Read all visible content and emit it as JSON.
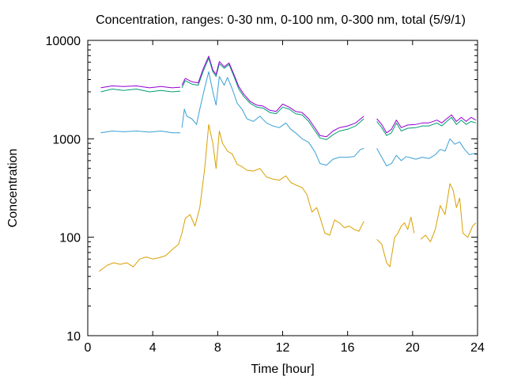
{
  "chart_data": {
    "type": "line",
    "title": "Concentration, ranges: 0-30 nm, 0-100 nm, 0-300 nm, total (5/9/1)",
    "xlabel": "Time [hour]",
    "ylabel": "Concentration",
    "xlim": [
      0,
      24
    ],
    "ylim": [
      10,
      10000
    ],
    "yscale": "log",
    "grid": false,
    "legend": "none",
    "x_ticks": [
      {
        "value": 0,
        "label": "0"
      },
      {
        "value": 4,
        "label": "4"
      },
      {
        "value": 8,
        "label": "8"
      },
      {
        "value": 12,
        "label": "12"
      },
      {
        "value": 16,
        "label": "16"
      },
      {
        "value": 20,
        "label": "20"
      },
      {
        "value": 24,
        "label": "24"
      }
    ],
    "y_ticks": [
      {
        "value": 10,
        "label": "10"
      },
      {
        "value": 100,
        "label": "100"
      },
      {
        "value": 1000,
        "label": "1000"
      },
      {
        "value": 10000,
        "label": "10000"
      }
    ],
    "series": [
      {
        "color": "#d9a000",
        "segments": [
          [
            [
              0.7,
              45
            ],
            [
              1.2,
              52
            ],
            [
              1.6,
              55
            ],
            [
              2.0,
              53
            ],
            [
              2.4,
              55
            ],
            [
              2.8,
              50
            ],
            [
              3.2,
              60
            ],
            [
              3.6,
              63
            ],
            [
              4.0,
              60
            ],
            [
              4.4,
              62
            ],
            [
              4.8,
              65
            ],
            [
              5.2,
              75
            ],
            [
              5.6,
              85
            ],
            [
              5.8,
              110
            ],
            [
              6.0,
              155
            ],
            [
              6.3,
              170
            ],
            [
              6.6,
              130
            ],
            [
              6.9,
              200
            ],
            [
              7.2,
              500
            ],
            [
              7.45,
              1400
            ],
            [
              7.7,
              900
            ],
            [
              7.9,
              500
            ],
            [
              8.1,
              1200
            ],
            [
              8.3,
              900
            ],
            [
              8.6,
              750
            ],
            [
              8.9,
              700
            ],
            [
              9.2,
              550
            ],
            [
              9.5,
              520
            ],
            [
              9.8,
              480
            ],
            [
              10.2,
              470
            ],
            [
              10.6,
              500
            ],
            [
              11.0,
              410
            ],
            [
              11.4,
              390
            ],
            [
              11.8,
              380
            ],
            [
              12.2,
              420
            ],
            [
              12.5,
              360
            ],
            [
              12.8,
              340
            ],
            [
              13.2,
              320
            ],
            [
              13.5,
              270
            ],
            [
              13.8,
              180
            ],
            [
              14.1,
              200
            ],
            [
              14.3,
              160
            ],
            [
              14.6,
              110
            ],
            [
              14.9,
              105
            ],
            [
              15.2,
              150
            ],
            [
              15.5,
              140
            ],
            [
              15.8,
              125
            ],
            [
              16.1,
              130
            ],
            [
              16.4,
              120
            ],
            [
              16.7,
              115
            ],
            [
              17.0,
              145
            ]
          ],
          [
            [
              17.8,
              95
            ],
            [
              18.1,
              85
            ],
            [
              18.4,
              55
            ],
            [
              18.6,
              50
            ],
            [
              18.9,
              100
            ],
            [
              19.1,
              110
            ],
            [
              19.3,
              130
            ],
            [
              19.5,
              140
            ],
            [
              19.7,
              120
            ],
            [
              19.9,
              160
            ],
            [
              20.1,
              110
            ]
          ],
          [
            [
              20.5,
              95
            ],
            [
              20.8,
              105
            ],
            [
              21.1,
              90
            ],
            [
              21.4,
              120
            ],
            [
              21.7,
              210
            ],
            [
              22.0,
              170
            ],
            [
              22.3,
              350
            ],
            [
              22.5,
              300
            ],
            [
              22.7,
              200
            ],
            [
              22.9,
              250
            ],
            [
              23.1,
              110
            ],
            [
              23.4,
              100
            ],
            [
              23.7,
              130
            ],
            [
              23.9,
              140
            ]
          ]
        ]
      },
      {
        "color": "#3aa0d5",
        "segments": [
          [
            [
              0.8,
              1150
            ],
            [
              1.5,
              1200
            ],
            [
              2.2,
              1180
            ],
            [
              3.0,
              1200
            ],
            [
              3.8,
              1170
            ],
            [
              4.5,
              1200
            ],
            [
              5.2,
              1150
            ],
            [
              5.7,
              1150
            ]
          ],
          [
            [
              5.8,
              1300
            ],
            [
              5.95,
              2000
            ],
            [
              6.1,
              1700
            ],
            [
              6.4,
              1600
            ],
            [
              6.7,
              1400
            ],
            [
              6.9,
              2000
            ],
            [
              7.2,
              3300
            ],
            [
              7.45,
              4800
            ],
            [
              7.7,
              3000
            ],
            [
              7.9,
              2200
            ],
            [
              8.1,
              4300
            ],
            [
              8.4,
              3500
            ],
            [
              8.6,
              4200
            ],
            [
              8.9,
              3200
            ],
            [
              9.2,
              2300
            ],
            [
              9.5,
              2000
            ],
            [
              9.8,
              1600
            ],
            [
              10.2,
              1500
            ],
            [
              10.6,
              1700
            ],
            [
              11.0,
              1450
            ],
            [
              11.4,
              1350
            ],
            [
              11.8,
              1300
            ],
            [
              12.2,
              1450
            ],
            [
              12.5,
              1250
            ],
            [
              12.8,
              1150
            ],
            [
              13.2,
              1000
            ],
            [
              13.6,
              920
            ],
            [
              14.0,
              730
            ],
            [
              14.3,
              560
            ],
            [
              14.7,
              540
            ],
            [
              15.1,
              620
            ],
            [
              15.5,
              650
            ],
            [
              16.0,
              650
            ],
            [
              16.4,
              660
            ],
            [
              16.8,
              780
            ],
            [
              17.0,
              800
            ]
          ],
          [
            [
              17.8,
              800
            ],
            [
              18.1,
              650
            ],
            [
              18.4,
              530
            ],
            [
              18.7,
              560
            ],
            [
              19.0,
              680
            ],
            [
              19.3,
              600
            ],
            [
              19.6,
              660
            ],
            [
              19.9,
              640
            ],
            [
              20.2,
              620
            ],
            [
              20.6,
              650
            ],
            [
              21.0,
              630
            ],
            [
              21.4,
              690
            ],
            [
              21.7,
              780
            ],
            [
              22.0,
              750
            ],
            [
              22.3,
              1000
            ],
            [
              22.6,
              880
            ],
            [
              22.9,
              930
            ],
            [
              23.2,
              780
            ],
            [
              23.5,
              690
            ],
            [
              23.8,
              710
            ],
            [
              24.0,
              700
            ]
          ]
        ]
      },
      {
        "color": "#009e73",
        "segments": [
          [
            [
              0.8,
              3000
            ],
            [
              1.5,
              3200
            ],
            [
              2.2,
              3100
            ],
            [
              3.0,
              3200
            ],
            [
              3.8,
              3000
            ],
            [
              4.5,
              3100
            ],
            [
              5.2,
              3000
            ],
            [
              5.7,
              3050
            ]
          ],
          [
            [
              5.8,
              3300
            ],
            [
              6.0,
              3900
            ],
            [
              6.4,
              3600
            ],
            [
              6.8,
              3500
            ],
            [
              7.1,
              4800
            ],
            [
              7.45,
              6600
            ],
            [
              7.7,
              4800
            ],
            [
              7.9,
              4300
            ],
            [
              8.1,
              5800
            ],
            [
              8.4,
              5200
            ],
            [
              8.7,
              5700
            ],
            [
              9.0,
              4300
            ],
            [
              9.3,
              3200
            ],
            [
              9.6,
              2700
            ],
            [
              10.0,
              2300
            ],
            [
              10.4,
              2100
            ],
            [
              10.8,
              2050
            ],
            [
              11.2,
              1850
            ],
            [
              11.6,
              1800
            ],
            [
              12.0,
              2100
            ],
            [
              12.4,
              2000
            ],
            [
              12.8,
              1800
            ],
            [
              13.2,
              1750
            ],
            [
              13.6,
              1500
            ],
            [
              14.0,
              1200
            ],
            [
              14.3,
              1020
            ],
            [
              14.7,
              980
            ],
            [
              15.1,
              1100
            ],
            [
              15.5,
              1200
            ],
            [
              16.0,
              1250
            ],
            [
              16.5,
              1350
            ],
            [
              17.0,
              1600
            ]
          ],
          [
            [
              17.8,
              1500
            ],
            [
              18.1,
              1300
            ],
            [
              18.4,
              1080
            ],
            [
              18.7,
              1150
            ],
            [
              19.0,
              1450
            ],
            [
              19.3,
              1200
            ],
            [
              19.7,
              1280
            ],
            [
              20.2,
              1300
            ],
            [
              20.6,
              1350
            ],
            [
              21.0,
              1350
            ],
            [
              21.5,
              1450
            ],
            [
              21.8,
              1350
            ],
            [
              22.1,
              1500
            ],
            [
              22.4,
              1650
            ],
            [
              22.7,
              1400
            ],
            [
              23.0,
              1550
            ],
            [
              23.3,
              1400
            ],
            [
              23.6,
              1500
            ],
            [
              23.9,
              1450
            ]
          ]
        ]
      },
      {
        "color": "#9400d3",
        "segments": [
          [
            [
              0.8,
              3300
            ],
            [
              1.5,
              3450
            ],
            [
              2.2,
              3400
            ],
            [
              3.0,
              3450
            ],
            [
              3.8,
              3300
            ],
            [
              4.5,
              3400
            ],
            [
              5.2,
              3300
            ],
            [
              5.7,
              3350
            ]
          ],
          [
            [
              5.8,
              3500
            ],
            [
              6.0,
              4100
            ],
            [
              6.4,
              3800
            ],
            [
              6.8,
              3700
            ],
            [
              7.1,
              5100
            ],
            [
              7.45,
              6900
            ],
            [
              7.7,
              5000
            ],
            [
              7.9,
              4500
            ],
            [
              8.1,
              6100
            ],
            [
              8.4,
              5400
            ],
            [
              8.7,
              5900
            ],
            [
              9.0,
              4500
            ],
            [
              9.3,
              3400
            ],
            [
              9.6,
              2850
            ],
            [
              10.0,
              2400
            ],
            [
              10.4,
              2200
            ],
            [
              10.8,
              2150
            ],
            [
              11.2,
              1950
            ],
            [
              11.6,
              1900
            ],
            [
              12.0,
              2250
            ],
            [
              12.4,
              2100
            ],
            [
              12.8,
              1900
            ],
            [
              13.2,
              1850
            ],
            [
              13.6,
              1600
            ],
            [
              14.0,
              1280
            ],
            [
              14.3,
              1080
            ],
            [
              14.7,
              1050
            ],
            [
              15.1,
              1200
            ],
            [
              15.5,
              1300
            ],
            [
              16.0,
              1350
            ],
            [
              16.5,
              1450
            ],
            [
              17.0,
              1700
            ]
          ],
          [
            [
              17.8,
              1600
            ],
            [
              18.1,
              1400
            ],
            [
              18.4,
              1150
            ],
            [
              18.7,
              1250
            ],
            [
              19.0,
              1550
            ],
            [
              19.3,
              1300
            ],
            [
              19.7,
              1380
            ],
            [
              20.2,
              1400
            ],
            [
              20.6,
              1450
            ],
            [
              21.0,
              1450
            ],
            [
              21.5,
              1550
            ],
            [
              21.8,
              1450
            ],
            [
              22.1,
              1600
            ],
            [
              22.4,
              1750
            ],
            [
              22.7,
              1500
            ],
            [
              23.0,
              1650
            ],
            [
              23.3,
              1500
            ],
            [
              23.6,
              1650
            ],
            [
              23.9,
              1550
            ]
          ]
        ]
      }
    ]
  }
}
